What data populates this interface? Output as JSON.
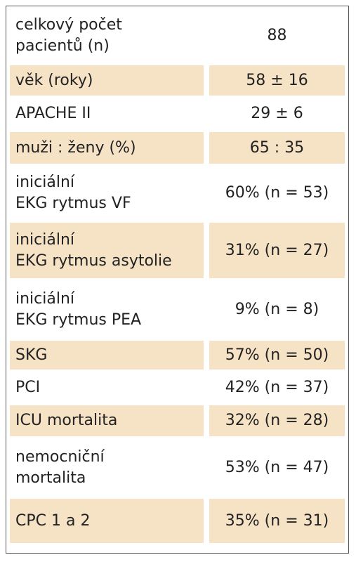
{
  "table": {
    "rows": [
      {
        "label": [
          "celkový počet",
          "pacientů (n)"
        ],
        "value": "88"
      },
      {
        "label": [
          "věk (roky)"
        ],
        "value": "58 ± 16"
      },
      {
        "label": [
          "APACHE II"
        ],
        "value": "29 ± 6"
      },
      {
        "label": [
          "muži : ženy (%)"
        ],
        "value": "65 : 35"
      },
      {
        "label": [
          "iniciální",
          "EKG rytmus VF"
        ],
        "value": "60% (n = 53)"
      },
      {
        "label": [
          "iniciální",
          "EKG rytmus asytolie"
        ],
        "value": "31% (n = 27)"
      },
      {
        "label": [
          "iniciální",
          "EKG rytmus PEA"
        ],
        "value": "9% (n = 8)"
      },
      {
        "label": [
          "SKG"
        ],
        "value": "57% (n = 50)"
      },
      {
        "label": [
          "PCI"
        ],
        "value": "42% (n = 37)"
      },
      {
        "label": [
          "ICU mortalita"
        ],
        "value": "32% (n = 28)"
      },
      {
        "label": [
          "nemocniční",
          "mortalita"
        ],
        "value": "53% (n = 47)"
      },
      {
        "label": [
          "CPC 1 a 2"
        ],
        "value": "35% (n = 31)"
      }
    ]
  }
}
